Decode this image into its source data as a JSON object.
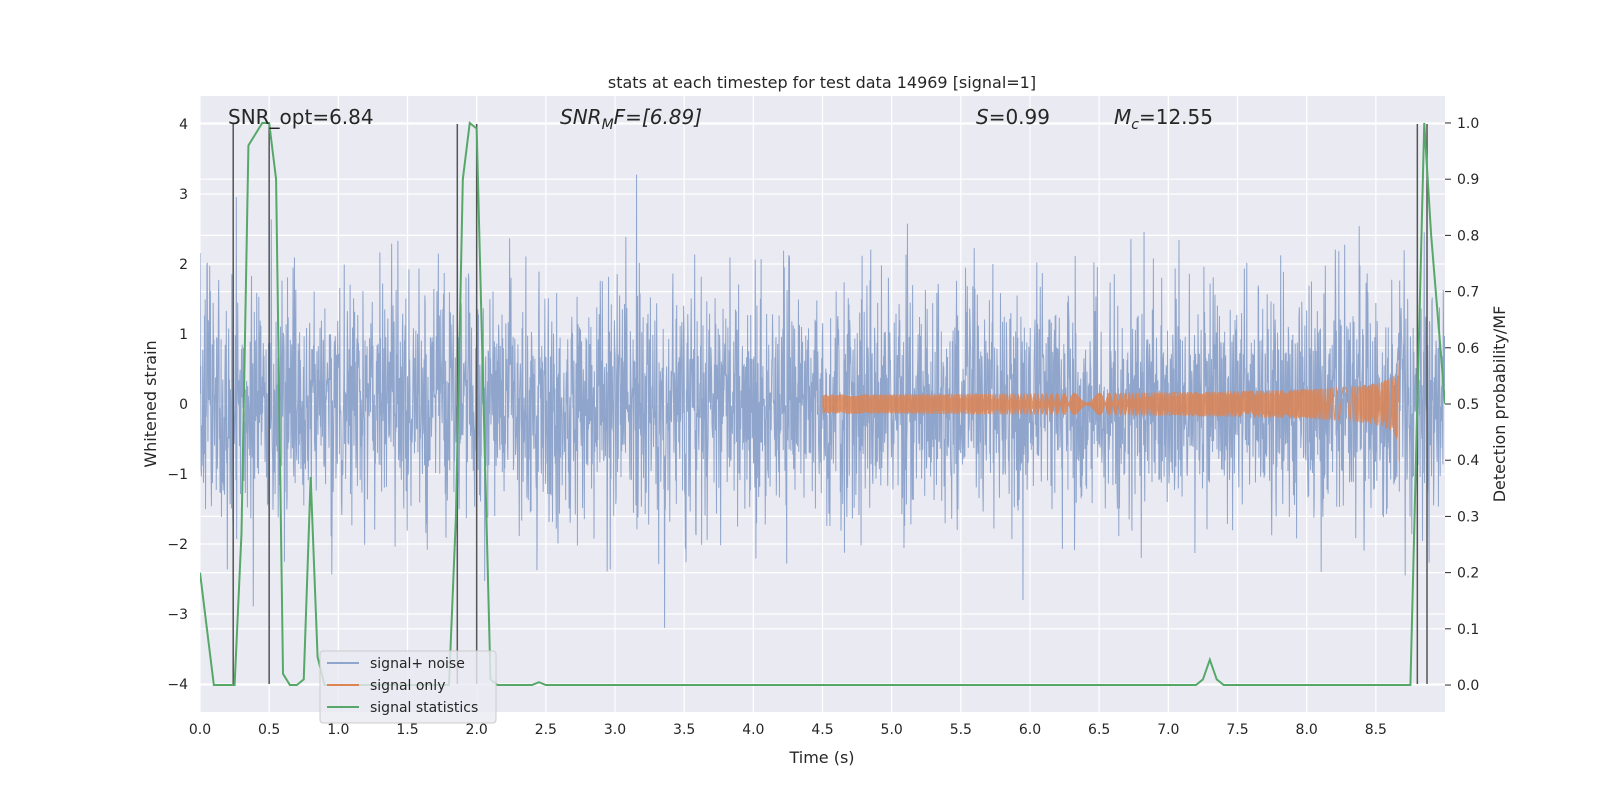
{
  "chart_data": {
    "type": "line",
    "title": "stats at each timestep for test data 14969 [signal=1]",
    "xlabel": "Time (s)",
    "ylabel": "Whitened strain",
    "ylabel_right": "Detection probability/MF",
    "xlim": [
      0.0,
      9.0
    ],
    "ylim": [
      -4.4,
      4.4
    ],
    "ylim_right": [
      -0.048,
      1.048
    ],
    "x_ticks": [
      "0.0",
      "0.5",
      "1.0",
      "1.5",
      "2.0",
      "2.5",
      "3.0",
      "3.5",
      "4.0",
      "4.5",
      "5.0",
      "5.5",
      "6.0",
      "6.5",
      "7.0",
      "7.5",
      "8.0",
      "8.5"
    ],
    "y_ticks": [
      "−4",
      "−3",
      "−2",
      "−1",
      "0",
      "1",
      "2",
      "3",
      "4"
    ],
    "y_ticks_right": [
      "0.0",
      "0.1",
      "0.2",
      "0.3",
      "0.4",
      "0.5",
      "0.6",
      "0.7",
      "0.8",
      "0.9",
      "1.0"
    ],
    "grid": true,
    "legend_position": "lower-left",
    "annotations": [
      {
        "label": "SNR_opt=6.84",
        "x": 0.2
      },
      {
        "label": "SNR_MF=[6.89]",
        "x": 2.6
      },
      {
        "label": "S=0.99",
        "x": 5.6
      },
      {
        "label": "M_c=12.55",
        "x": 6.6
      }
    ],
    "annotation_parts": {
      "snr_opt": "SNR_opt=6.84",
      "snr_mf_sym": "SNR",
      "snr_mf_sub": "M",
      "snr_mf_rest": "F=[6.89]",
      "s_sym": "S",
      "s_rest": "=0.99",
      "mc_sym": "M",
      "mc_sub": "c",
      "mc_rest": "=12.55"
    },
    "series": [
      {
        "name": "signal+ noise",
        "color": "#8fa5cc",
        "kind": "noise",
        "amplitude_std": 0.85
      },
      {
        "name": "signal only",
        "color": "#dd8452",
        "kind": "chirp",
        "start_x": 4.5,
        "peak_x": 8.67,
        "peak_amplitude": 1.3
      },
      {
        "name": "signal statistics",
        "color": "#55a868",
        "axis": "right",
        "x": [
          0.0,
          0.05,
          0.1,
          0.25,
          0.3,
          0.35,
          0.45,
          0.5,
          0.55,
          0.6,
          0.65,
          0.7,
          0.75,
          0.8,
          0.85,
          0.9,
          1.0,
          1.5,
          1.8,
          1.85,
          1.9,
          1.95,
          2.0,
          2.05,
          2.1,
          2.15,
          2.3,
          2.4,
          2.45,
          2.5,
          2.6,
          3.0,
          5.0,
          7.0,
          7.2,
          7.25,
          7.3,
          7.35,
          7.4,
          8.0,
          8.75,
          8.8,
          8.85,
          8.9,
          9.0
        ],
        "values": [
          0.2,
          0.1,
          0.0,
          0.0,
          0.27,
          0.96,
          1.0,
          1.0,
          0.9,
          0.02,
          0.0,
          0.0,
          0.01,
          0.37,
          0.05,
          0.0,
          0.0,
          0.0,
          0.0,
          0.3,
          0.9,
          1.0,
          0.99,
          0.5,
          0.01,
          0.0,
          0.0,
          0.0,
          0.005,
          0.0,
          0.0,
          0.0,
          0.0,
          0.0,
          0.0,
          0.01,
          0.045,
          0.01,
          0.0,
          0.0,
          0.0,
          0.5,
          1.0,
          0.8,
          0.5
        ]
      }
    ],
    "vertical_markers_x": [
      0.24,
      0.5,
      1.86,
      2.0,
      8.8,
      8.87
    ]
  }
}
